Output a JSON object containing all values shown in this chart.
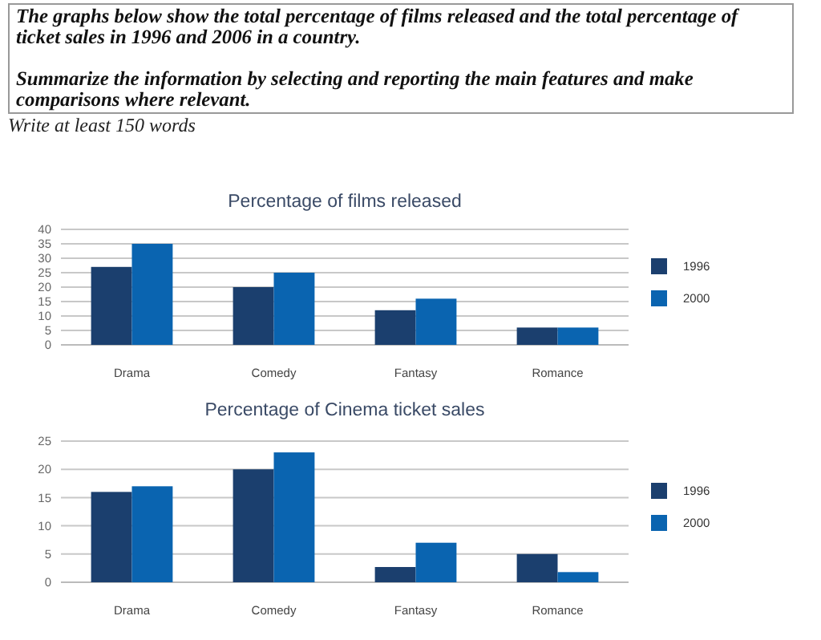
{
  "chart_data": [
    {
      "type": "bar",
      "title": "Percentage of films released",
      "categories": [
        "Drama",
        "Comedy",
        "Fantasy",
        "Romance"
      ],
      "series": [
        {
          "name": "1996",
          "color": "#1b3f6e",
          "values": [
            27,
            20,
            12,
            6
          ]
        },
        {
          "name": "2000",
          "color": "#0a64b0",
          "values": [
            35,
            25,
            16,
            6
          ]
        }
      ],
      "ylim": [
        0,
        40
      ],
      "yticks": [
        0,
        5,
        10,
        15,
        20,
        25,
        30,
        35,
        40
      ],
      "grid": "y",
      "legend": "right",
      "annotations": [
        "The graphs below show the total percentage of films released and the total percentage of ticket sales in 1996 and 2006 in a country.",
        "Summarize the information by selecting and reporting the main features and make comparisons where relevant.",
        "Write at least 150 words"
      ]
    },
    {
      "type": "bar",
      "title": "Percentage of Cinema ticket sales",
      "categories": [
        "Drama",
        "Comedy",
        "Fantasy",
        "Romance"
      ],
      "series": [
        {
          "name": "1996",
          "color": "#1b3f6e",
          "values": [
            16,
            20,
            2.7,
            5
          ]
        },
        {
          "name": "2000",
          "color": "#0a64b0",
          "values": [
            17,
            23,
            7,
            1.8
          ]
        }
      ],
      "ylim": [
        0,
        25
      ],
      "yticks": [
        0,
        5,
        10,
        15,
        20,
        25
      ],
      "grid": "y",
      "legend": "right"
    }
  ]
}
